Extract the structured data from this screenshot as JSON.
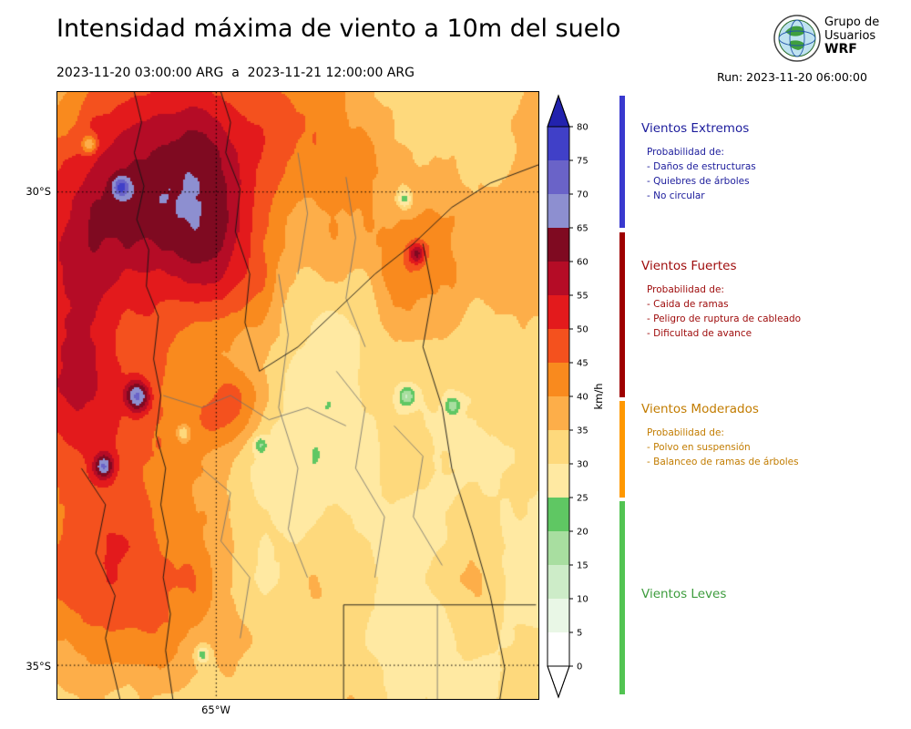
{
  "header": {
    "title": "Intensidad máxima de viento a 10m del suelo",
    "date_range": "2023-11-20 03:00:00 ARG  a  2023-11-21 12:00:00 ARG",
    "run_label": "Run: 2023-11-20 06:00:00",
    "logo": {
      "org_line1": "Grupo de",
      "org_line2": "Usuarios",
      "org_line3": "WRF"
    }
  },
  "map": {
    "lat_labels": [
      "30°S",
      "35°S"
    ],
    "lon_label": "65°W"
  },
  "colorbar": {
    "unit": "km/h",
    "tick_values": [
      0,
      5,
      10,
      15,
      20,
      25,
      30,
      35,
      40,
      45,
      50,
      55,
      60,
      65,
      70,
      75,
      80
    ],
    "bin_colors_low_to_high": [
      "#ffffff",
      "#e9f7e6",
      "#cdecc8",
      "#a8dea0",
      "#5fc763",
      "#ffe9a2",
      "#fed97c",
      "#fdae49",
      "#f98a1e",
      "#f4511e",
      "#e31a1c",
      "#b50c26",
      "#7f0a21",
      "#8d8fd0",
      "#6a63c8",
      "#4040c8"
    ],
    "over_color": "#2222ae",
    "under_color": "#ffffff"
  },
  "legend": {
    "categories": [
      {
        "name": "Vientos Extremos",
        "text_color": "#1c1c9c",
        "bar_color": "#3939cf",
        "prob_title": "Probabilidad de:",
        "items": [
          "- Daños de estructuras",
          "- Quiebres de árboles",
          "- No circular"
        ]
      },
      {
        "name": "Vientos Fuertes",
        "text_color": "#9e0a0a",
        "bar_color": "#9e0000",
        "prob_title": "Probabilidad de:",
        "items": [
          "- Caida de ramas",
          "- Peligro de ruptura de cableado",
          "- Dificultad de avance"
        ]
      },
      {
        "name": "Vientos Moderados",
        "text_color": "#c27c00",
        "bar_color": "#ff9800",
        "prob_title": "Probabilidad de:",
        "items": [
          "- Polvo en suspensión",
          "- Balanceo de ramas de árboles"
        ]
      },
      {
        "name": "Vientos Leves",
        "text_color": "#3d9c3d",
        "bar_color": "#52c452",
        "prob_title": "",
        "items": []
      }
    ]
  },
  "chart_data": {
    "type": "heatmap",
    "title": "Intensidad máxima de viento a 10m del suelo",
    "units": "km/h",
    "value_bins": [
      0,
      5,
      10,
      15,
      20,
      25,
      30,
      35,
      40,
      45,
      50,
      55,
      60,
      65,
      70,
      75,
      80
    ],
    "colorbar_extends": {
      "over": true,
      "under": true
    },
    "categories": [
      {
        "label": "Vientos Leves",
        "range_kmh": [
          0,
          25
        ]
      },
      {
        "label": "Vientos Moderados",
        "range_kmh": [
          25,
          40
        ]
      },
      {
        "label": "Vientos Fuertes",
        "range_kmh": [
          40,
          65
        ]
      },
      {
        "label": "Vientos Extremos",
        "range_kmh": [
          65,
          85
        ]
      }
    ],
    "map_extent": {
      "lat_ticks": [
        "30°S",
        "35°S"
      ],
      "lon_ticks": [
        "65°W"
      ]
    }
  }
}
